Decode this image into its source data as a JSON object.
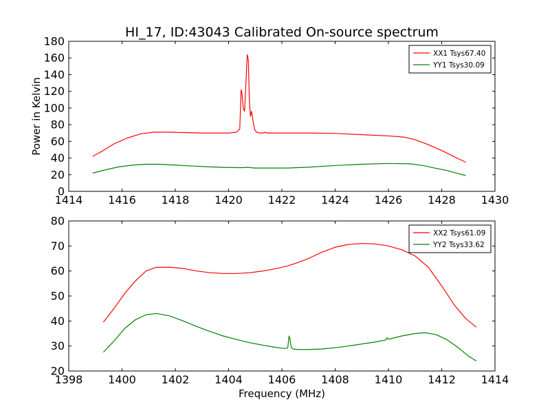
{
  "figure": {
    "title": "HI_17, ID:43043 Calibrated On-source spectrum"
  },
  "chart_data": [
    {
      "type": "line",
      "title": "HI_17, ID:43043 Calibrated On-source spectrum",
      "xlabel": "",
      "ylabel": "Power in Kelvin",
      "xlim": [
        1414,
        1430
      ],
      "ylim": [
        0,
        180
      ],
      "xticks": [
        1414,
        1416,
        1418,
        1420,
        1422,
        1424,
        1426,
        1428,
        1430
      ],
      "yticks": [
        0,
        20,
        40,
        60,
        80,
        100,
        120,
        140,
        160,
        180
      ],
      "grid": false,
      "legend_position": "top-right",
      "series": [
        {
          "name": "XX1 Tsys67.40",
          "color": "#ff0000",
          "x": [
            1414.9,
            1415.3,
            1415.7,
            1416.2,
            1416.7,
            1417.2,
            1417.8,
            1418.4,
            1419.0,
            1419.6,
            1420.0,
            1420.3,
            1420.42,
            1420.47,
            1420.5,
            1420.55,
            1420.6,
            1420.65,
            1420.7,
            1420.74,
            1420.78,
            1420.82,
            1420.86,
            1420.9,
            1420.94,
            1420.98,
            1421.05,
            1421.15,
            1421.3,
            1421.38,
            1421.42,
            1421.5,
            1422.0,
            1423.0,
            1424.0,
            1425.0,
            1426.0,
            1426.6,
            1427.0,
            1427.5,
            1428.0,
            1428.5,
            1428.9
          ],
          "y": [
            42,
            49,
            57,
            64,
            69,
            71,
            71,
            70.5,
            70,
            70,
            70,
            71,
            75,
            122,
            118,
            100,
            96,
            130,
            164,
            158,
            110,
            90,
            96,
            88,
            80,
            74,
            71,
            70,
            70,
            71,
            70,
            70,
            70,
            70,
            69.5,
            68,
            66.5,
            65,
            62,
            56,
            49,
            41,
            35
          ]
        },
        {
          "name": "YY1 Tsys30.09",
          "color": "#008000",
          "x": [
            1414.9,
            1415.4,
            1415.9,
            1416.4,
            1416.9,
            1417.4,
            1418.0,
            1418.6,
            1419.2,
            1419.8,
            1420.3,
            1420.6,
            1420.72,
            1420.8,
            1421.0,
            1421.6,
            1422.2,
            1423.0,
            1424.0,
            1425.0,
            1426.0,
            1426.8,
            1427.3,
            1427.8,
            1428.2,
            1428.6,
            1428.9
          ],
          "y": [
            22,
            26,
            29.5,
            31.5,
            32.5,
            32.5,
            31.5,
            30.5,
            29.5,
            28.8,
            28.5,
            28.5,
            29,
            28.5,
            28,
            28,
            28,
            29,
            31,
            32.5,
            33.5,
            33,
            31,
            27.5,
            25,
            21.5,
            19
          ]
        }
      ]
    },
    {
      "type": "line",
      "title": "",
      "xlabel": "Frequency (MHz)",
      "ylabel": "",
      "xlim": [
        1398,
        1414
      ],
      "ylim": [
        20,
        80
      ],
      "xticks": [
        1398,
        1400,
        1402,
        1404,
        1406,
        1408,
        1410,
        1412,
        1414
      ],
      "yticks": [
        20,
        30,
        40,
        50,
        60,
        70,
        80
      ],
      "grid": false,
      "legend_position": "top-right",
      "series": [
        {
          "name": "XX2 Tsys61.09",
          "color": "#ff0000",
          "x": [
            1399.3,
            1399.7,
            1400.1,
            1400.5,
            1400.9,
            1401.3,
            1401.8,
            1402.3,
            1402.8,
            1403.3,
            1403.8,
            1404.3,
            1404.8,
            1405.3,
            1405.8,
            1406.2,
            1406.5,
            1407.0,
            1407.5,
            1408.0,
            1408.5,
            1409.0,
            1409.5,
            1410.0,
            1410.5,
            1411.0,
            1411.5,
            1412.0,
            1412.5,
            1412.9,
            1413.3
          ],
          "y": [
            39.5,
            45,
            51,
            56,
            60,
            61.5,
            61.5,
            61,
            60,
            59.3,
            59,
            59,
            59.3,
            60,
            61,
            62,
            63,
            65,
            67.5,
            69.5,
            70.6,
            71,
            70.8,
            70,
            68.5,
            66,
            61.5,
            54,
            46,
            41,
            37.5
          ]
        },
        {
          "name": "YY2 Tsys33.62",
          "color": "#008000",
          "x": [
            1399.3,
            1399.7,
            1400.1,
            1400.5,
            1400.9,
            1401.3,
            1401.8,
            1402.3,
            1402.8,
            1403.3,
            1403.8,
            1404.3,
            1404.8,
            1405.3,
            1405.8,
            1406.1,
            1406.22,
            1406.27,
            1406.3,
            1406.35,
            1406.42,
            1406.6,
            1407.0,
            1407.5,
            1408.0,
            1408.5,
            1409.0,
            1409.5,
            1409.9,
            1409.95,
            1410.0,
            1410.5,
            1411.0,
            1411.4,
            1411.8,
            1412.2,
            1412.6,
            1413.0,
            1413.3
          ],
          "y": [
            27.5,
            32,
            37,
            40.5,
            42.5,
            43,
            42,
            40,
            37.8,
            35.8,
            34,
            32.6,
            31.3,
            30.3,
            29.4,
            29,
            29.2,
            34,
            33,
            29.5,
            28.8,
            28.6,
            28.6,
            28.8,
            29.3,
            30,
            30.8,
            31.6,
            32.4,
            33.3,
            32.7,
            34,
            35,
            35.3,
            34.5,
            32.5,
            29.5,
            26,
            24
          ]
        }
      ]
    }
  ]
}
